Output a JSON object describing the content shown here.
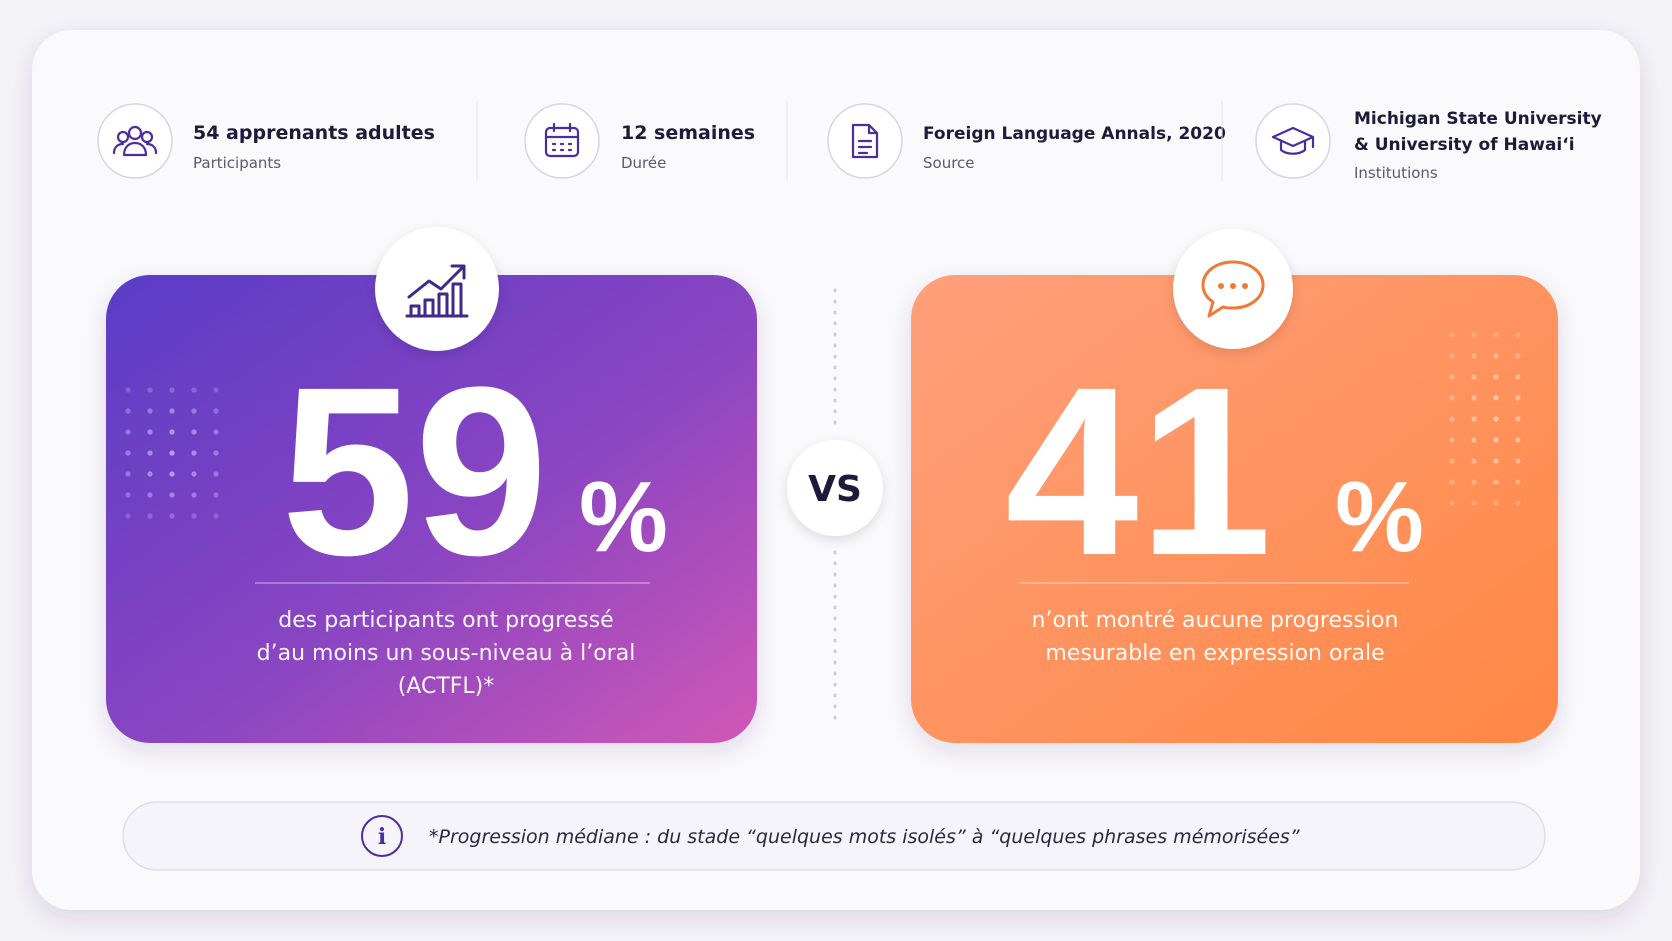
{
  "info": [
    {
      "title": [
        "54 apprenants adultes"
      ],
      "label": "Participants"
    },
    {
      "title": [
        "12 semaines"
      ],
      "label": "Durée"
    },
    {
      "title": [
        "Foreign Language Annals, 2020"
      ],
      "label": "Source"
    },
    {
      "title": [
        "Michigan State University",
        "& University of Hawai‘i"
      ],
      "label": "Institutions"
    }
  ],
  "stats": [
    {
      "value": 59,
      "unit": "%",
      "description": [
        "des participants ont progressé",
        "d’au moins un sous-niveau à  l’oral",
        "(ACTFL)*"
      ]
    },
    {
      "value": 41,
      "unit": "%",
      "description": [
        "n’ont montré aucune progression",
        "mesurable en expression orale"
      ]
    }
  ],
  "vs": "VS",
  "footnote": "*Progression médiane : du stade “quelques mots isolés” à “quelques phrases mémorisées”"
}
